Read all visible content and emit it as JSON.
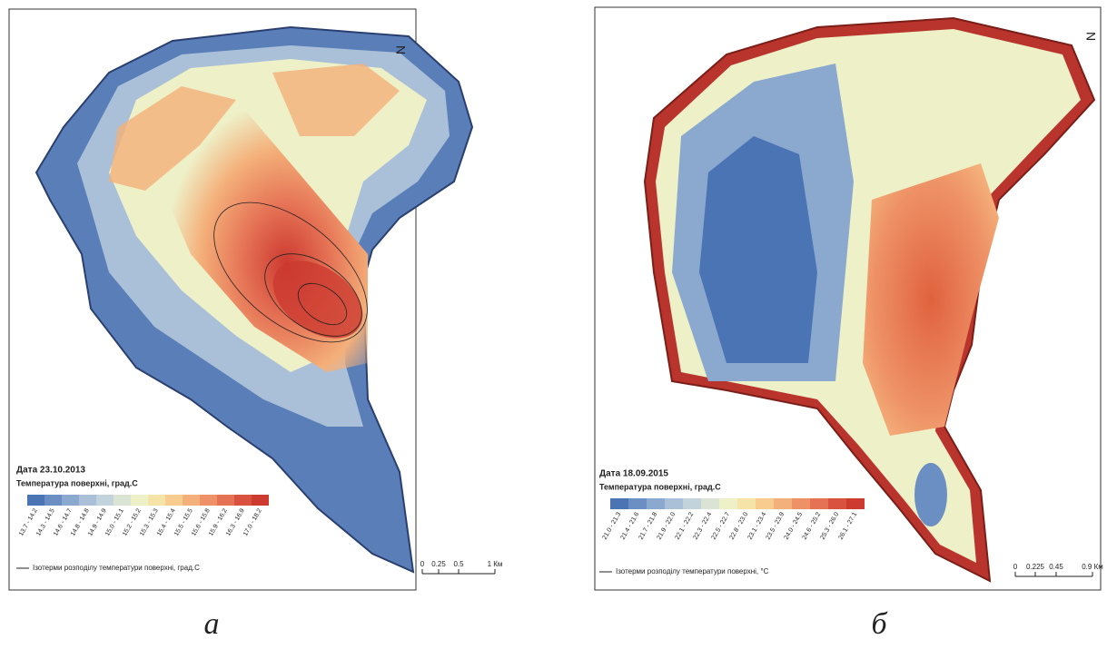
{
  "panels": [
    {
      "date": "Дата 23.10.2013",
      "legend_title": "Температура поверхні, град.С",
      "classes": [
        {
          "label": "13.7 - 14.2",
          "color": "#4a74b4"
        },
        {
          "label": "14.3 - 14.5",
          "color": "#6b8fc2"
        },
        {
          "label": "14.6 - 14.7",
          "color": "#8ba9cf"
        },
        {
          "label": "14.8 - 14.8",
          "color": "#a9c0d8"
        },
        {
          "label": "14.9 - 14.9",
          "color": "#c3d3dc"
        },
        {
          "label": "15.0 - 15.1",
          "color": "#dbe4d4"
        },
        {
          "label": "15.2 - 15.2",
          "color": "#eef0c8"
        },
        {
          "label": "15.3 - 15.3",
          "color": "#f6e3a8"
        },
        {
          "label": "15.4 - 15.4",
          "color": "#f7cc8e"
        },
        {
          "label": "15.5 - 15.5",
          "color": "#f4b07a"
        },
        {
          "label": "15.6 - 15.8",
          "color": "#ee9166"
        },
        {
          "label": "15.9 - 16.2",
          "color": "#e57255"
        },
        {
          "label": "16.3 - 16.9",
          "color": "#d9523f"
        },
        {
          "label": "17.0 - 18.2",
          "color": "#cc3a30"
        }
      ],
      "isotherms": "Ізотерми розподілу температури поверхні, град.С",
      "scale": [
        "0",
        "0.25",
        "0.5",
        "1 Км"
      ],
      "north": "N",
      "caption": "а"
    },
    {
      "date": "Дата 18.09.2015",
      "legend_title": "Температура поверхні, град.С",
      "classes": [
        {
          "label": "21.0 - 21.3",
          "color": "#4a74b4"
        },
        {
          "label": "21.4 - 21.6",
          "color": "#6b8fc2"
        },
        {
          "label": "21.7 - 21.8",
          "color": "#8ba9cf"
        },
        {
          "label": "21.9 - 22.0",
          "color": "#a9c0d8"
        },
        {
          "label": "22.1 - 22.2",
          "color": "#c3d3dc"
        },
        {
          "label": "22.3 - 22.4",
          "color": "#dbe4d4"
        },
        {
          "label": "22.5 - 22.7",
          "color": "#eef0c8"
        },
        {
          "label": "22.8 - 23.0",
          "color": "#f6e3a8"
        },
        {
          "label": "23.1 - 23.4",
          "color": "#f7cc8e"
        },
        {
          "label": "23.5 - 23.9",
          "color": "#f4b07a"
        },
        {
          "label": "24.0 - 24.5",
          "color": "#ee9166"
        },
        {
          "label": "24.6 - 25.2",
          "color": "#e57255"
        },
        {
          "label": "25.3 - 26.0",
          "color": "#d9523f"
        },
        {
          "label": "26.1 - 27.1",
          "color": "#cc3a30"
        }
      ],
      "isotherms": "Ізотерми розподілу температури поверхні, °С",
      "scale": [
        "0",
        "0.225",
        "0.45",
        "0.9 Км"
      ],
      "north": "N",
      "caption": "б"
    }
  ]
}
